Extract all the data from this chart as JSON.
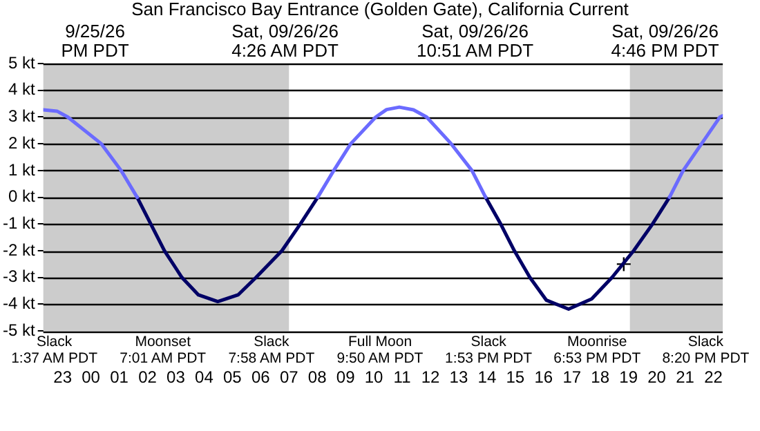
{
  "chart_data": {
    "type": "line",
    "title": "San Francisco Bay Entrance (Golden Gate), California Current",
    "x": [
      "--09-25T22:19",
      "--09-25T22:48",
      "--09-25T23:11",
      "--09-26T00:22",
      "--09-26T01:04",
      "--09-26T01:38",
      "--09-26T02:07",
      "--09-26T02:36",
      "--09-26T03:13",
      "--09-26T03:48",
      "--09-26T04:29",
      "--09-26T05:12",
      "--09-26T05:50",
      "--09-26T06:45",
      "--09-26T07:24",
      "--09-26T08:01",
      "--09-26T08:35",
      "--09-26T09:11",
      "--09-26T10:04",
      "--09-26T10:27",
      "--09-26T10:54",
      "--09-26T11:24",
      "--09-26T11:52",
      "--09-26T12:44",
      "--09-26T13:28",
      "--09-26T13:57",
      "--09-26T14:29",
      "--09-26T14:58",
      "--09-26T15:31",
      "--09-26T16:06",
      "--09-26T16:53",
      "--09-26T17:42",
      "--09-26T18:25",
      "--09-26T19:11",
      "--09-26T19:51",
      "--09-26T20:27",
      "--09-26T20:56",
      "--09-26T21:35",
      "--09-26T22:14",
      "--09-26T22:20"
    ],
    "series": [
      {
        "color": "#6b6bff",
        "values": [
          3.27,
          3.22,
          3,
          2,
          1,
          0,
          null,
          null,
          null,
          null,
          null,
          null,
          null,
          null,
          null,
          0,
          1,
          2,
          3,
          3.28,
          3.37,
          3.27,
          3,
          2,
          1,
          0,
          null,
          null,
          null,
          null,
          null,
          null,
          null,
          null,
          null,
          0,
          1,
          2,
          3,
          3.05
        ]
      },
      {
        "color": "#000066",
        "values": [
          null,
          null,
          null,
          null,
          null,
          0,
          -1,
          -2,
          -3,
          -3.65,
          -3.9,
          -3.65,
          -3,
          -2,
          -1,
          0,
          null,
          null,
          null,
          null,
          null,
          null,
          null,
          null,
          null,
          0,
          -1,
          -2,
          -3,
          -3.85,
          -4.18,
          -3.8,
          -3,
          -2,
          -1,
          0,
          null,
          null,
          null,
          null
        ]
      },
      {
        "type": "scatter",
        "color": "#000000",
        "marker": "cross",
        "x": [
          "--09-26T18:50"
        ],
        "values": [
          -2.5
        ]
      }
    ],
    "xlim": [
      "--09-25T22:19",
      "--09-26T22:20"
    ],
    "xticks": [
      {
        "value": "--09-25T23:00",
        "label": "23"
      },
      {
        "value": "--09-26T00:00",
        "label": "00"
      },
      {
        "value": "--09-26T01:00",
        "label": "01"
      },
      {
        "value": "--09-26T02:00",
        "label": "02"
      },
      {
        "value": "--09-26T03:00",
        "label": "03"
      },
      {
        "value": "--09-26T04:00",
        "label": "04"
      },
      {
        "value": "--09-26T05:00",
        "label": "05"
      },
      {
        "value": "--09-26T06:00",
        "label": "06"
      },
      {
        "value": "--09-26T07:00",
        "label": "07"
      },
      {
        "value": "--09-26T08:00",
        "label": "08"
      },
      {
        "value": "--09-26T09:00",
        "label": "09"
      },
      {
        "value": "--09-26T10:00",
        "label": "10"
      },
      {
        "value": "--09-26T11:00",
        "label": "11"
      },
      {
        "value": "--09-26T12:00",
        "label": "12"
      },
      {
        "value": "--09-26T13:00",
        "label": "13"
      },
      {
        "value": "--09-26T14:00",
        "label": "14"
      },
      {
        "value": "--09-26T15:00",
        "label": "15"
      },
      {
        "value": "--09-26T16:00",
        "label": "16"
      },
      {
        "value": "--09-26T17:00",
        "label": "17"
      },
      {
        "value": "--09-26T18:00",
        "label": "18"
      },
      {
        "value": "--09-26T19:00",
        "label": "19"
      },
      {
        "value": "--09-26T20:00",
        "label": "20"
      },
      {
        "value": "--09-26T21:00",
        "label": "21"
      },
      {
        "value": "--09-26T22:00",
        "label": "22"
      }
    ],
    "ylim": [
      -5,
      5
    ],
    "yticks": [
      {
        "value": -5,
        "label": "-5 kt"
      },
      {
        "value": -4,
        "label": "-4 kt"
      },
      {
        "value": -3,
        "label": "-3 kt"
      },
      {
        "value": -2,
        "label": "-2 kt"
      },
      {
        "value": -1,
        "label": "-1 kt"
      },
      {
        "value": 0,
        "label": "0 kt"
      },
      {
        "value": 1,
        "label": "1 kt"
      },
      {
        "value": 2,
        "label": "2 kt"
      },
      {
        "value": 3,
        "label": "3 kt"
      },
      {
        "value": 4,
        "label": "4 kt"
      },
      {
        "value": 5,
        "label": "5 kt"
      }
    ],
    "grid": "y",
    "bands": [
      {
        "axis": "x",
        "from": "--09-25T22:19",
        "to": "--09-26T07:00",
        "color": "#cccccc"
      },
      {
        "axis": "x",
        "from": "--09-26T19:03",
        "to": "--09-26T22:20",
        "color": "#cccccc"
      }
    ],
    "annotations": [
      "9/25/26\nPM PDT",
      "Sat, 09/26/26\n4:26 AM PDT",
      "Sat, 09/26/26\n10:51 AM PDT",
      "Sat, 09/26/26\n4:46 PM PDT",
      "Slack\n1:37 AM PDT",
      "Moonset\n7:01 AM PDT",
      "Slack\n7:58 AM PDT",
      "Full Moon\n9:50 AM PDT",
      "Slack\n1:53 PM PDT",
      "Moonrise\n6:53 PM PDT",
      "Slack\n8:20 PM PDT"
    ]
  }
}
